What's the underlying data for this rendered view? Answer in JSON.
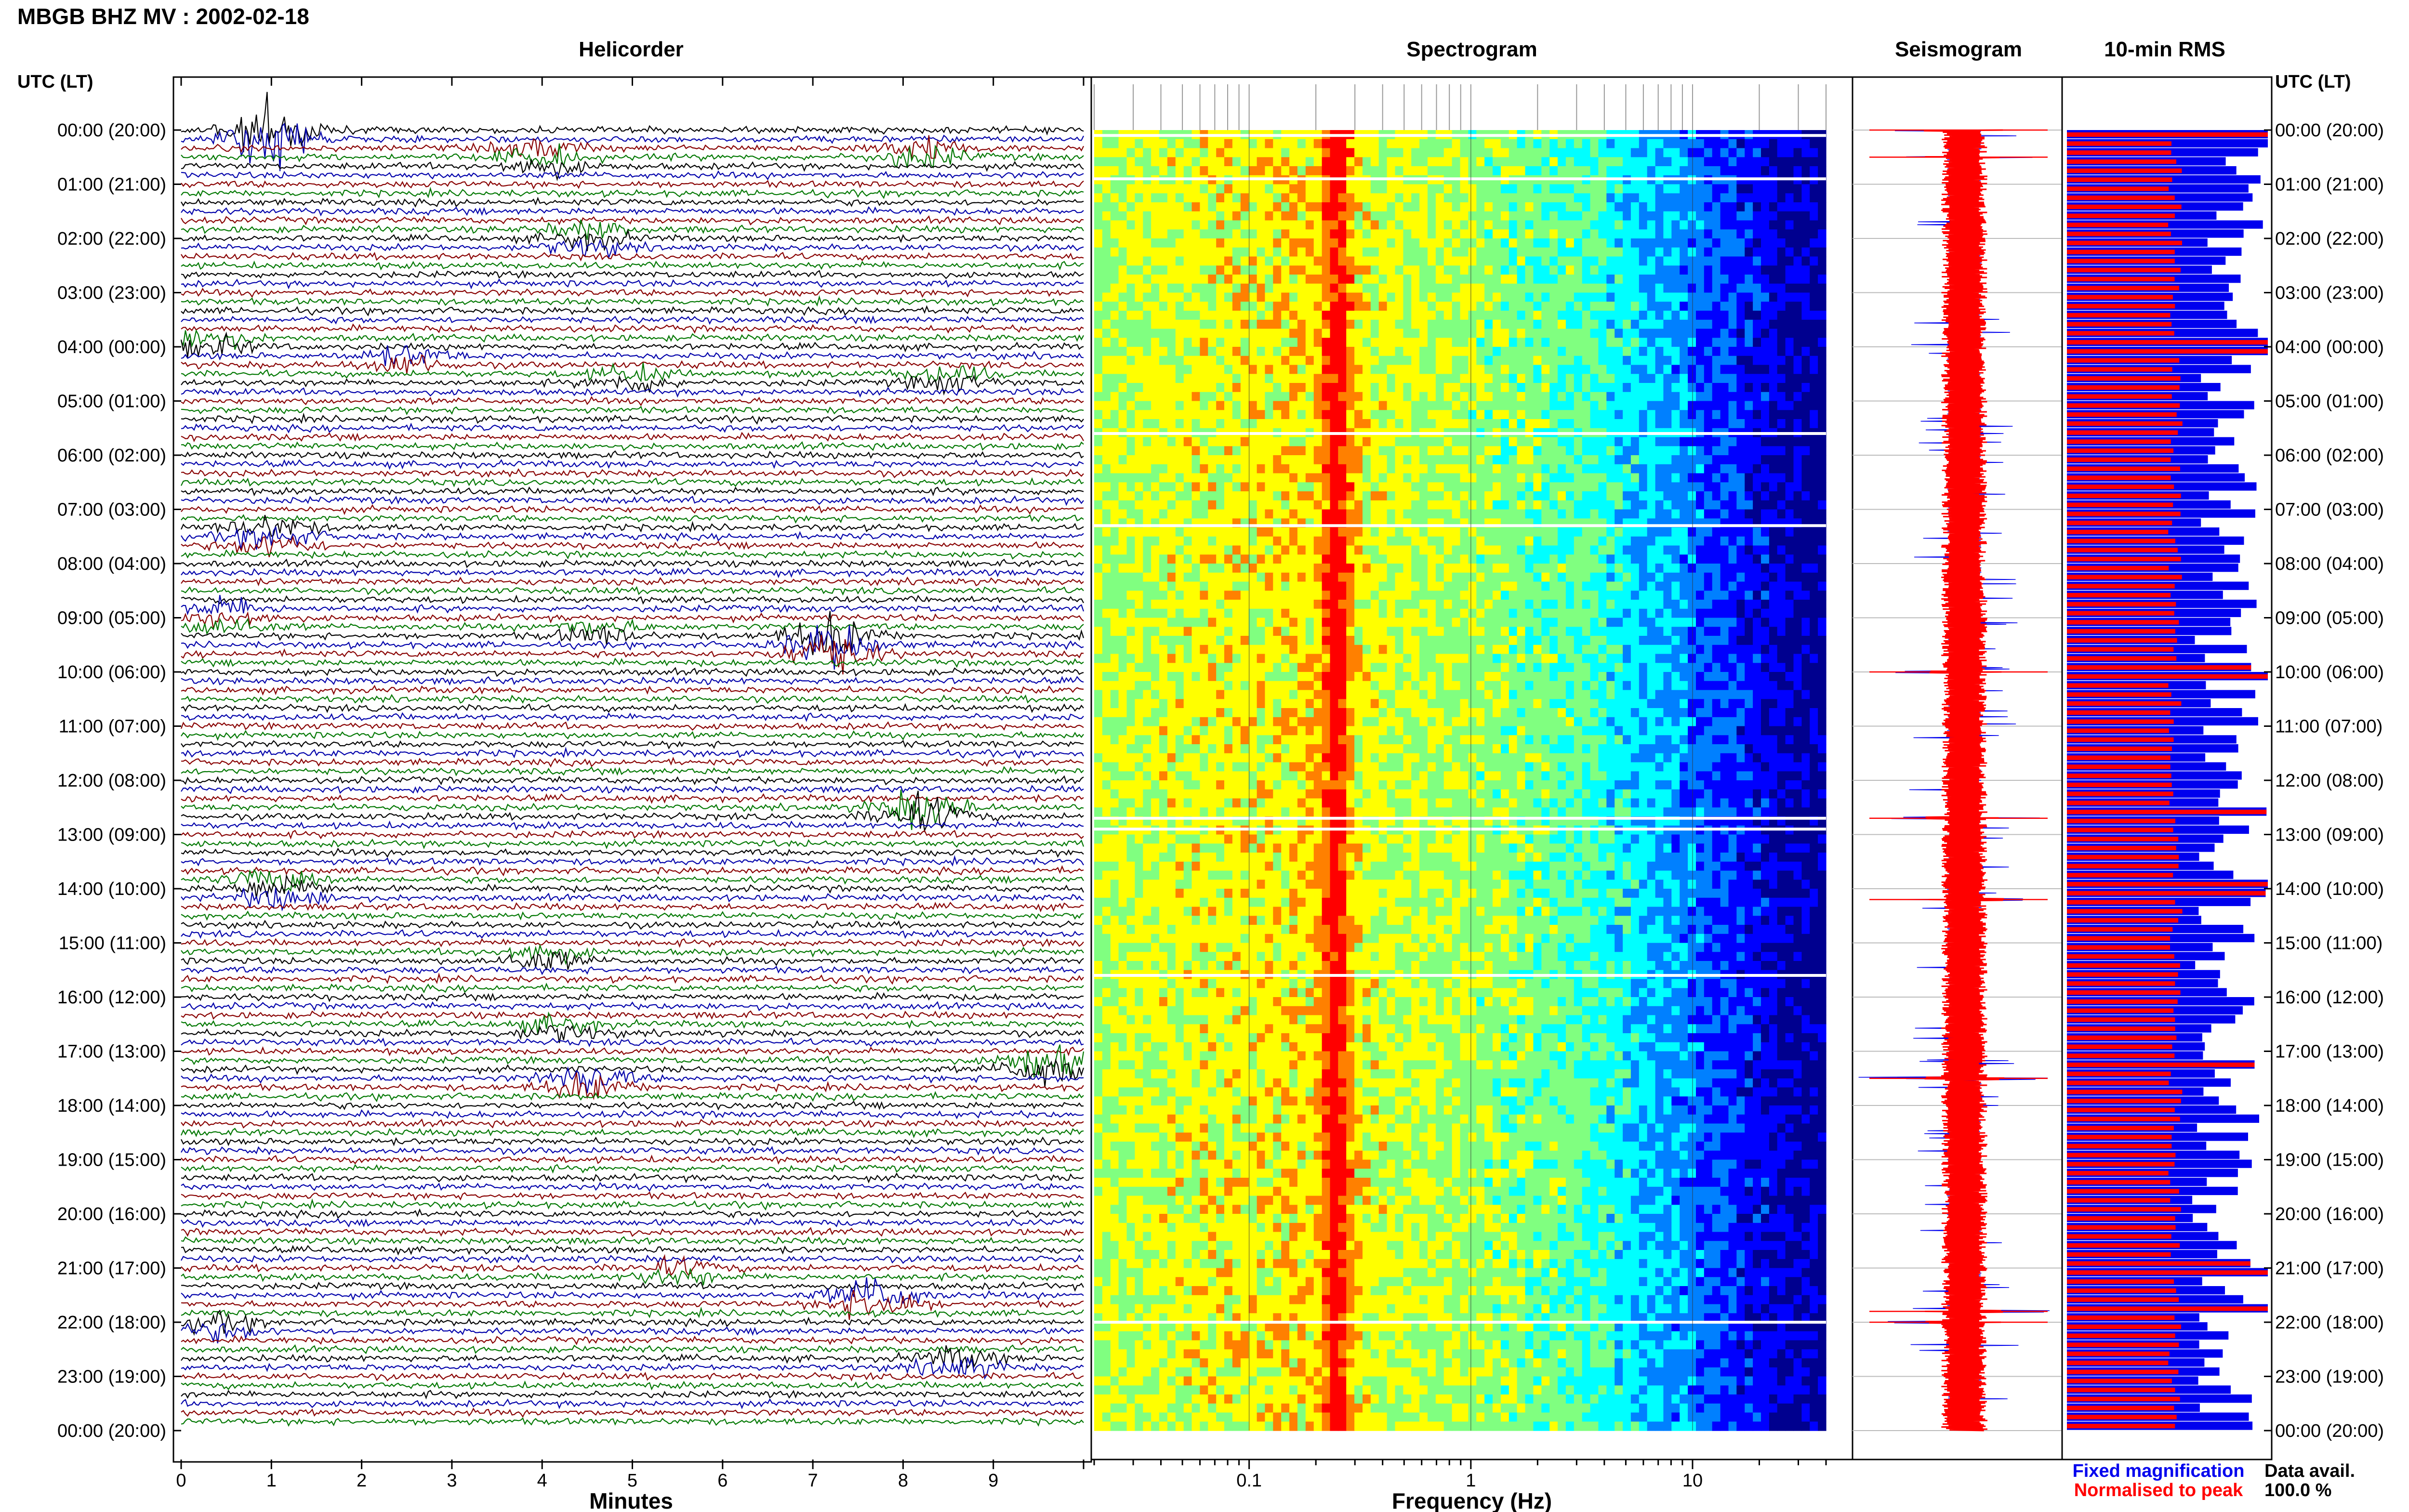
{
  "header": {
    "title": "MBGB BHZ MV : 2002-02-18",
    "utc_label_left": "UTC (LT)",
    "utc_label_right": "UTC (LT)"
  },
  "panels": {
    "helicorder_title": "Helicorder",
    "spectrogram_title": "Spectrogram",
    "seismogram_title": "Seismogram",
    "rms_title": "10-min RMS"
  },
  "time_labels": [
    "00:00 (20:00)",
    "01:00 (21:00)",
    "02:00 (22:00)",
    "03:00 (23:00)",
    "04:00 (00:00)",
    "05:00 (01:00)",
    "06:00 (02:00)",
    "07:00 (03:00)",
    "08:00 (04:00)",
    "09:00 (05:00)",
    "10:00 (06:00)",
    "11:00 (07:00)",
    "12:00 (08:00)",
    "13:00 (09:00)",
    "14:00 (10:00)",
    "15:00 (11:00)",
    "16:00 (12:00)",
    "17:00 (13:00)",
    "18:00 (14:00)",
    "19:00 (15:00)",
    "20:00 (16:00)",
    "21:00 (17:00)",
    "22:00 (18:00)",
    "23:00 (19:00)",
    "00:00 (20:00)"
  ],
  "legend": {
    "fixed": "Fixed magnification",
    "normalised": "Normalised to peak",
    "fixed_color": "#0000ee",
    "normalised_color": "#ff0000",
    "avail_label": "Data avail.",
    "avail_value": "100.0 %"
  },
  "chart_data": [
    {
      "type": "line",
      "title": "Helicorder",
      "xlabel": "Minutes",
      "x_ticks": [
        "0",
        "1",
        "2",
        "3",
        "4",
        "5",
        "6",
        "7",
        "8",
        "9"
      ],
      "xlim": [
        0,
        10
      ],
      "trace_colors": [
        "#000000",
        "#0000aa",
        "#880000",
        "#007700"
      ],
      "rows_per_hour": 6,
      "events": [
        {
          "minute": 1.0,
          "hour": 0.0,
          "amp": 1.8
        },
        {
          "minute": 4.0,
          "hour": 0.5,
          "amp": 0.6
        },
        {
          "minute": 8.2,
          "hour": 0.35,
          "amp": 0.7
        },
        {
          "minute": 4.5,
          "hour": 2.0,
          "amp": 0.5
        },
        {
          "minute": 2.5,
          "hour": 4.2,
          "amp": 0.6
        },
        {
          "minute": 0.3,
          "hour": 3.85,
          "amp": 0.6
        },
        {
          "minute": 5.0,
          "hour": 4.6,
          "amp": 0.5
        },
        {
          "minute": 8.5,
          "hour": 4.55,
          "amp": 0.5
        },
        {
          "minute": 1.0,
          "hour": 7.5,
          "amp": 0.7
        },
        {
          "minute": 0.5,
          "hour": 9.0,
          "amp": 0.6
        },
        {
          "minute": 7.2,
          "hour": 9.5,
          "amp": 1.4
        },
        {
          "minute": 4.6,
          "hour": 9.3,
          "amp": 0.5
        },
        {
          "minute": 8.2,
          "hour": 12.65,
          "amp": 1.2
        },
        {
          "minute": 1.1,
          "hour": 14.0,
          "amp": 0.8
        },
        {
          "minute": 4.0,
          "hour": 15.3,
          "amp": 0.6
        },
        {
          "minute": 4.2,
          "hour": 16.6,
          "amp": 0.5
        },
        {
          "minute": 9.6,
          "hour": 17.3,
          "amp": 1.1
        },
        {
          "minute": 4.5,
          "hour": 17.6,
          "amp": 0.8
        },
        {
          "minute": 7.7,
          "hour": 21.55,
          "amp": 1.1
        },
        {
          "minute": 5.5,
          "hour": 21.15,
          "amp": 0.5
        },
        {
          "minute": 0.4,
          "hour": 22.15,
          "amp": 0.5
        },
        {
          "minute": 8.6,
          "hour": 22.7,
          "amp": 0.6
        }
      ]
    },
    {
      "type": "heatmap",
      "title": "Spectrogram",
      "xlabel": "Frequency (Hz)",
      "x_scale": "log",
      "xlim": [
        0.02,
        40
      ],
      "x_tick_labels": [
        {
          "value": 0.1,
          "label": "0.1"
        },
        {
          "value": 1,
          "label": "1"
        },
        {
          "value": 10,
          "label": "10"
        }
      ],
      "peak_frequency_hz": 0.25,
      "rolloff_frequency_hz": 3,
      "colormap": [
        "#00008f",
        "#0000ff",
        "#0080ff",
        "#00ffff",
        "#80ff80",
        "#ffff00",
        "#ff8000",
        "#ff0000"
      ],
      "data_gaps_hour": [
        0.1,
        0.9,
        5.6,
        7.3,
        12.7,
        12.9,
        15.6,
        22.0
      ]
    },
    {
      "type": "line",
      "title": "Seismogram",
      "series": [
        {
          "name": "Fixed magnification",
          "color": "#0000ee"
        },
        {
          "name": "Normalised to peak",
          "color": "#ff0000"
        }
      ],
      "spikes_hour": [
        0.0,
        0.5,
        10.0,
        12.7,
        14.2,
        17.5,
        21.8,
        22.0
      ]
    },
    {
      "type": "bar",
      "title": "10-min RMS",
      "orientation": "horizontal",
      "series": [
        {
          "name": "Fixed magnification",
          "color": "#0000ee"
        },
        {
          "name": "Normalised to peak",
          "color": "#ff0000"
        }
      ],
      "max_hours": [
        0.0,
        4.0,
        10.0,
        12.6,
        14.0,
        17.3,
        21.0,
        21.7
      ]
    }
  ]
}
